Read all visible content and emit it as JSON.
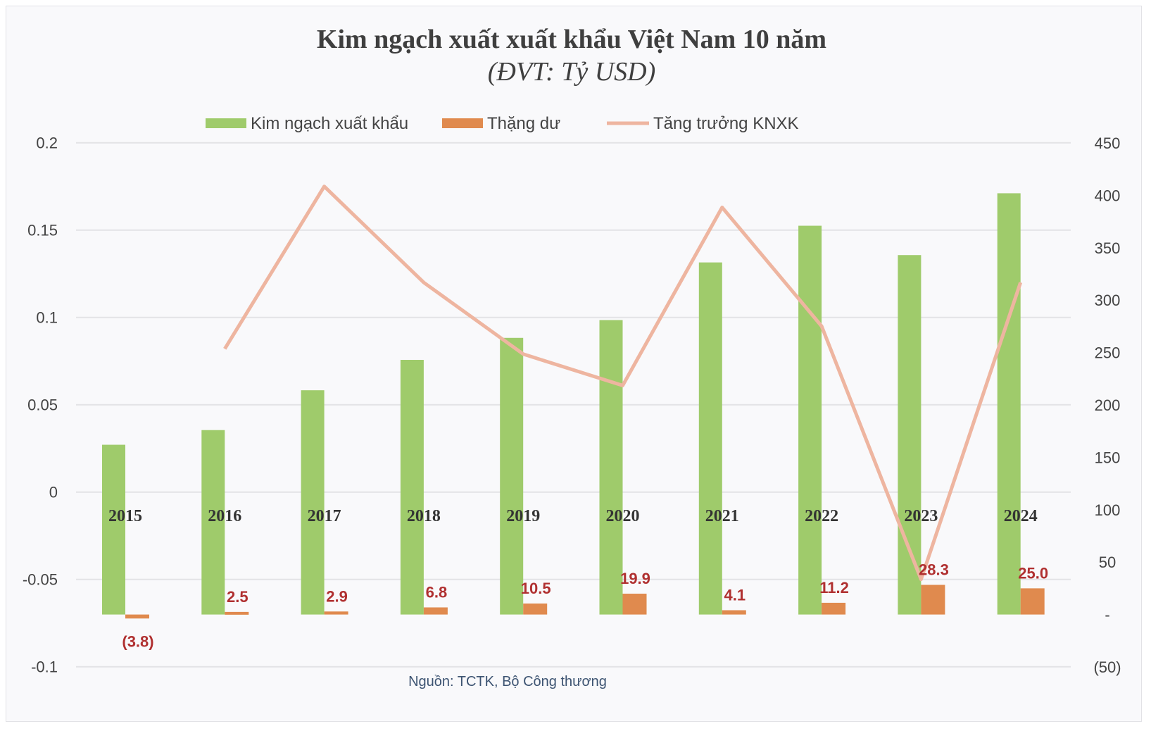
{
  "chart_data": {
    "type": "bar",
    "title": "Kim ngạch xuất xuất khẩu Việt Nam 10 năm",
    "subtitle": "(ĐVT: Tỷ USD)",
    "source": "Nguồn: TCTK, Bộ Công thương",
    "categories": [
      "2015",
      "2016",
      "2017",
      "2018",
      "2019",
      "2020",
      "2021",
      "2022",
      "2023",
      "2024"
    ],
    "series": [
      {
        "name": "Kim ngạch xuất khẩu",
        "type": "bar",
        "axis": "right",
        "color": "#9fcb6b",
        "values": [
          162,
          176,
          214,
          243,
          264,
          281,
          336,
          371,
          343,
          402
        ]
      },
      {
        "name": "Thặng dư",
        "type": "bar",
        "axis": "right",
        "color": "#e08a4e",
        "values": [
          -3.8,
          2.5,
          2.9,
          6.8,
          10.5,
          19.9,
          4.1,
          11.2,
          28.3,
          25.0
        ],
        "labels": [
          "(3.8)",
          "2.5",
          "2.9",
          "6.8",
          "10.5",
          "19.9",
          "4.1",
          "11.2",
          "28.3",
          "25.0"
        ]
      },
      {
        "name": "Tăng trưởng KNXK",
        "type": "line",
        "axis": "left",
        "color": "#eeb5a0",
        "values": [
          null,
          0.082,
          0.175,
          0.12,
          0.079,
          0.061,
          0.163,
          0.095,
          -0.05,
          0.12
        ]
      }
    ],
    "left_axis": {
      "ylim": [
        -0.1,
        0.2
      ],
      "ticks": [
        "0.2",
        "0.15",
        "0.1",
        "0.05",
        "0",
        "-0.05",
        "-0.1"
      ],
      "tick_values": [
        0.2,
        0.15,
        0.1,
        0.05,
        0,
        -0.05,
        -0.1
      ]
    },
    "right_axis": {
      "ylim": [
        -50,
        450
      ],
      "ticks": [
        "450",
        "400",
        "350",
        "300",
        "250",
        "200",
        "150",
        "100",
        "50",
        "-",
        "(50)"
      ],
      "tick_values": [
        450,
        400,
        350,
        300,
        250,
        200,
        150,
        100,
        50,
        0,
        -50
      ]
    },
    "grid": true,
    "legend": "top"
  }
}
